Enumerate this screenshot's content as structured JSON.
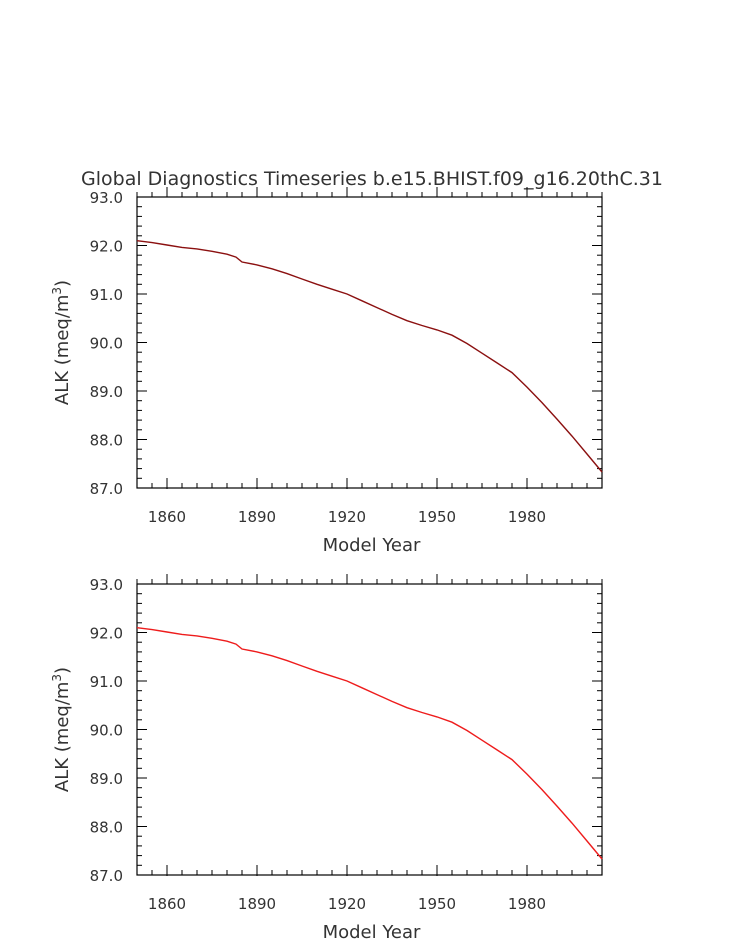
{
  "figure": {
    "title": "Global Diagnostics Timeseries b.e15.BHIST.f09_g16.20thC.31"
  },
  "chart_data": [
    {
      "type": "line",
      "title": "Global Diagnostics Timeseries b.e15.BHIST.f09_g16.20thC.31",
      "xlabel": "Model Year",
      "ylabel_main": "ALK (meq/m",
      "ylabel_sup": "3",
      "ylabel_close": ")",
      "xlim": [
        1850,
        2005
      ],
      "ylim": [
        87.0,
        93.0
      ],
      "xticks": [
        1860,
        1890,
        1920,
        1950,
        1980
      ],
      "xtick_labels": [
        "1860",
        "1890",
        "1920",
        "1950",
        "1980"
      ],
      "yticks": [
        87.0,
        88.0,
        89.0,
        90.0,
        91.0,
        92.0,
        93.0
      ],
      "ytick_labels": [
        "87.0",
        "88.0",
        "89.0",
        "90.0",
        "91.0",
        "92.0",
        "93.0"
      ],
      "grid": false,
      "line_color": "#8b1010",
      "series": [
        {
          "x": [
            1850,
            1855,
            1860,
            1865,
            1870,
            1875,
            1880,
            1883,
            1885,
            1890,
            1895,
            1900,
            1905,
            1910,
            1915,
            1920,
            1925,
            1930,
            1935,
            1940,
            1945,
            1950,
            1955,
            1960,
            1965,
            1970,
            1975,
            1980,
            1985,
            1990,
            1995,
            2000,
            2005
          ],
          "values": [
            92.1,
            92.06,
            92.01,
            91.96,
            91.93,
            91.88,
            91.82,
            91.76,
            91.66,
            91.6,
            91.52,
            91.42,
            91.31,
            91.2,
            91.1,
            91.0,
            90.86,
            90.72,
            90.58,
            90.45,
            90.35,
            90.26,
            90.15,
            89.98,
            89.78,
            89.58,
            89.38,
            89.08,
            88.76,
            88.42,
            88.07,
            87.7,
            87.33
          ]
        }
      ]
    },
    {
      "type": "line",
      "xlabel": "Model Year",
      "ylabel_main": "ALK (meq/m",
      "ylabel_sup": "3",
      "ylabel_close": ")",
      "xlim": [
        1850,
        2005
      ],
      "ylim": [
        87.0,
        93.0
      ],
      "xticks": [
        1860,
        1890,
        1920,
        1950,
        1980
      ],
      "xtick_labels": [
        "1860",
        "1890",
        "1920",
        "1950",
        "1980"
      ],
      "yticks": [
        87.0,
        88.0,
        89.0,
        90.0,
        91.0,
        92.0,
        93.0
      ],
      "ytick_labels": [
        "87.0",
        "88.0",
        "89.0",
        "90.0",
        "91.0",
        "92.0",
        "93.0"
      ],
      "grid": false,
      "line_color": "#ee1c1c",
      "series": [
        {
          "x": [
            1850,
            1855,
            1860,
            1865,
            1870,
            1875,
            1880,
            1883,
            1885,
            1890,
            1895,
            1900,
            1905,
            1910,
            1915,
            1920,
            1925,
            1930,
            1935,
            1940,
            1945,
            1950,
            1955,
            1960,
            1965,
            1970,
            1975,
            1980,
            1985,
            1990,
            1995,
            2000,
            2005
          ],
          "values": [
            92.1,
            92.06,
            92.01,
            91.96,
            91.93,
            91.88,
            91.82,
            91.76,
            91.66,
            91.6,
            91.52,
            91.42,
            91.31,
            91.2,
            91.1,
            91.0,
            90.86,
            90.72,
            90.58,
            90.45,
            90.35,
            90.26,
            90.15,
            89.98,
            89.78,
            89.58,
            89.38,
            89.08,
            88.76,
            88.42,
            88.07,
            87.7,
            87.33
          ]
        }
      ]
    }
  ]
}
